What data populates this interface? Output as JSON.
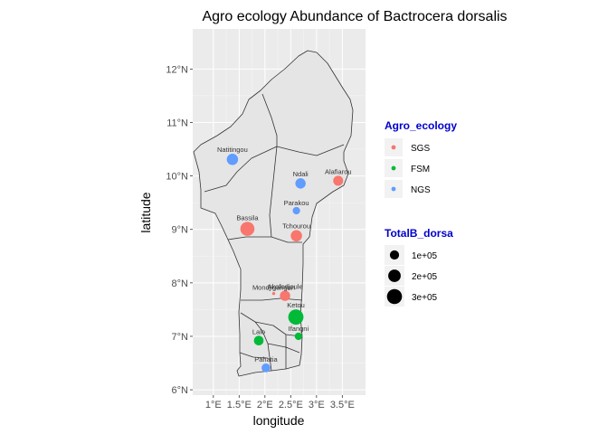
{
  "chart_data": {
    "type": "scatter",
    "title": "Agro ecology Abundance of Bactrocera dorsalis",
    "xlabel": "longitude",
    "ylabel": "latitude",
    "xlim": [
      0.6,
      3.95
    ],
    "ylim": [
      5.9,
      12.75
    ],
    "x_ticks": [
      {
        "value": 1.0,
        "label": "1°E"
      },
      {
        "value": 1.5,
        "label": "1.5°E"
      },
      {
        "value": 2.0,
        "label": "2°E"
      },
      {
        "value": 2.5,
        "label": "2.5°E"
      },
      {
        "value": 3.0,
        "label": "3°E"
      },
      {
        "value": 3.5,
        "label": "3.5°E"
      }
    ],
    "y_ticks": [
      {
        "value": 6,
        "label": "6°N"
      },
      {
        "value": 7,
        "label": "7°N"
      },
      {
        "value": 8,
        "label": "8°N"
      },
      {
        "value": 9,
        "label": "9°N"
      },
      {
        "value": 10,
        "label": "10°N"
      },
      {
        "value": 11,
        "label": "11°N"
      },
      {
        "value": 12,
        "label": "12°N"
      }
    ],
    "grid": true,
    "legend_position": "right",
    "color_legend": {
      "title": "Agro_ecology",
      "entries": [
        {
          "label": "SGS",
          "color": "#F8766D"
        },
        {
          "label": "FSM",
          "color": "#00BA38"
        },
        {
          "label": "NGS",
          "color": "#619CFF"
        }
      ]
    },
    "size_legend": {
      "title": "TotalB_dorsa",
      "entries": [
        {
          "label": "1e+05",
          "value": 100000
        },
        {
          "label": "2e+05",
          "value": 200000
        },
        {
          "label": "3e+05",
          "value": 300000
        }
      ]
    },
    "size_scale": {
      "min_value": 5000,
      "max_value": 340000,
      "min_radius": 1.7,
      "max_radius": 8.8
    },
    "points": [
      {
        "name": "Natitingou",
        "lon": 1.37,
        "lat": 10.31,
        "group": "NGS",
        "total": 160000
      },
      {
        "name": "Ndali",
        "lon": 2.69,
        "lat": 9.86,
        "group": "NGS",
        "total": 130000
      },
      {
        "name": "Alafiarou",
        "lon": 3.42,
        "lat": 9.91,
        "group": "SGS",
        "total": 120000
      },
      {
        "name": "Parakou",
        "lon": 2.61,
        "lat": 9.35,
        "group": "NGS",
        "total": 60000
      },
      {
        "name": "Bassila",
        "lon": 1.66,
        "lat": 9.01,
        "group": "SGS",
        "total": 260000
      },
      {
        "name": "Tchourou",
        "lon": 2.61,
        "lat": 8.88,
        "group": "SGS",
        "total": 160000
      },
      {
        "name": "Mondjigangan",
        "lon": 2.17,
        "lat": 7.8,
        "group": "SGS",
        "total": 5000
      },
      {
        "name": "Akofodjoule",
        "lon": 2.39,
        "lat": 7.76,
        "group": "SGS",
        "total": 130000
      },
      {
        "name": "Ketou",
        "lon": 2.6,
        "lat": 7.36,
        "group": "FSM",
        "total": 310000
      },
      {
        "name": "Lalo",
        "lon": 1.88,
        "lat": 6.92,
        "group": "FSM",
        "total": 110000
      },
      {
        "name": "Ifangni",
        "lon": 2.65,
        "lat": 7.0,
        "group": "FSM",
        "total": 60000
      },
      {
        "name": "Pahatia",
        "lon": 2.02,
        "lat": 6.41,
        "group": "NGS",
        "total": 90000
      }
    ]
  }
}
